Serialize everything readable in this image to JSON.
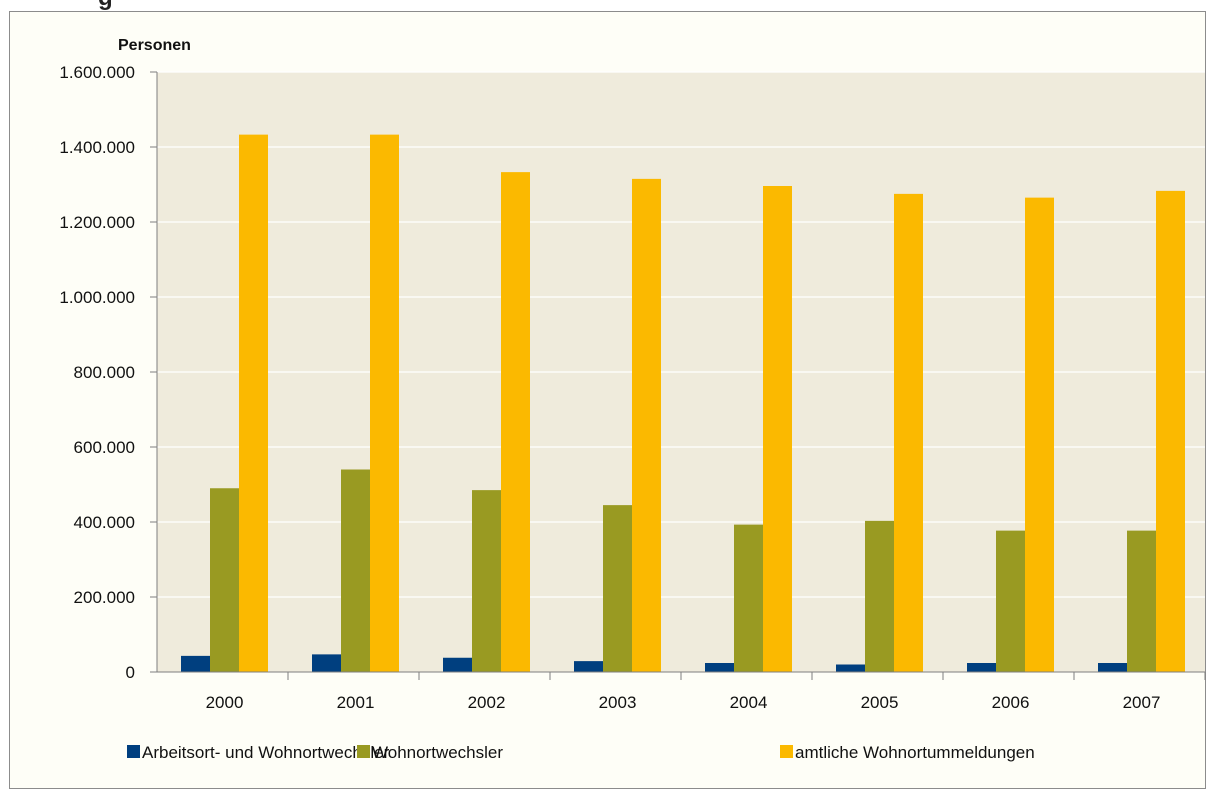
{
  "chart_data": {
    "type": "bar",
    "title_fragment": "g",
    "ylabel": "Personen",
    "ylim": [
      0,
      1600000
    ],
    "yticks": [
      0,
      200000,
      400000,
      600000,
      800000,
      1000000,
      1200000,
      1400000,
      1600000
    ],
    "ytick_labels": [
      "0",
      "200.000",
      "400.000",
      "600.000",
      "800.000",
      "1.000.000",
      "1.200.000",
      "1.400.000",
      "1.600.000"
    ],
    "categories": [
      "2000",
      "2001",
      "2002",
      "2003",
      "2004",
      "2005",
      "2006",
      "2007"
    ],
    "series": [
      {
        "name": "Arbeitsort- und Wohnortwechsler",
        "color": "#003f7f",
        "values": [
          43000,
          47000,
          38000,
          29000,
          24000,
          20000,
          24000,
          24000
        ]
      },
      {
        "name": "Wohnortwechsler",
        "color": "#999a22",
        "values": [
          490000,
          540000,
          485000,
          445000,
          393000,
          403000,
          377000,
          377000
        ]
      },
      {
        "name": "amtliche Wohnortummeldungen",
        "color": "#fbb900",
        "values": [
          1433000,
          1433000,
          1333000,
          1315000,
          1296000,
          1275000,
          1265000,
          1283000
        ]
      }
    ],
    "grid": true,
    "plot_background": "#efebdc",
    "legend_position": "bottom"
  }
}
